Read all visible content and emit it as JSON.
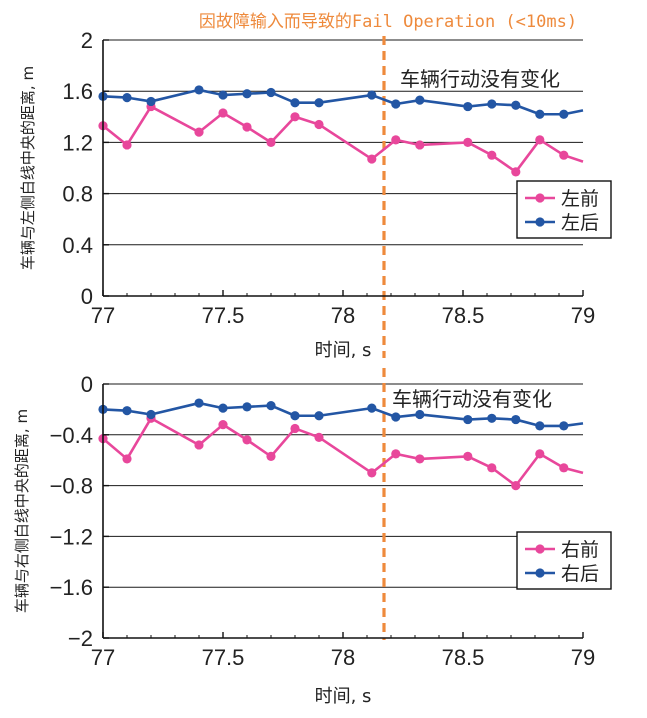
{
  "colors": {
    "front": "#e8479b",
    "rear": "#2356a4",
    "event": "#ee8a3c",
    "axis": "#111111"
  },
  "chart_data": [
    {
      "type": "line",
      "title": "因故障输入而导致的Fail Operation (<10ms)",
      "annotation": "车辆行动没有变化",
      "xlabel": "时间, s",
      "ylabel": "车辆与左侧白线中央的距离, m",
      "xlim": [
        77,
        79
      ],
      "ylim": [
        0,
        2
      ],
      "x_ticks": [
        "77",
        "77.5",
        "78",
        "78.5",
        "79"
      ],
      "y_ticks": [
        "0",
        "0.4",
        "0.8",
        "1.2",
        "1.6",
        "2"
      ],
      "grid": "horizontal",
      "legend_position": "right",
      "event_x": 78.17,
      "series": [
        {
          "name": "左前",
          "x": [
            77,
            77.1,
            77.2,
            77.4,
            77.5,
            77.6,
            77.7,
            77.8,
            77.9,
            78.12,
            78.22,
            78.32,
            78.52,
            78.62,
            78.72,
            78.82,
            78.92,
            79
          ],
          "values": [
            1.33,
            1.18,
            1.48,
            1.28,
            1.43,
            1.32,
            1.2,
            1.4,
            1.34,
            1.07,
            1.22,
            1.18,
            1.2,
            1.1,
            0.97,
            1.22,
            1.1,
            1.05
          ]
        },
        {
          "name": "左后",
          "x": [
            77,
            77.1,
            77.2,
            77.4,
            77.5,
            77.6,
            77.7,
            77.8,
            77.9,
            78.12,
            78.22,
            78.32,
            78.52,
            78.62,
            78.72,
            78.82,
            78.92,
            79
          ],
          "values": [
            1.56,
            1.55,
            1.52,
            1.61,
            1.57,
            1.58,
            1.59,
            1.51,
            1.51,
            1.57,
            1.5,
            1.53,
            1.48,
            1.5,
            1.49,
            1.42,
            1.42,
            1.45
          ]
        }
      ]
    },
    {
      "type": "line",
      "annotation": "车辆行动没有变化",
      "xlabel": "时间, s",
      "ylabel": "车辆与右侧白线中央的距离, m",
      "xlim": [
        77,
        79
      ],
      "ylim": [
        -2,
        0
      ],
      "x_ticks": [
        "77",
        "77.5",
        "78",
        "78.5",
        "79"
      ],
      "y_ticks": [
        "0",
        "-0.4",
        "-0.8",
        "-1.2",
        "-1.6",
        "-2"
      ],
      "grid": "horizontal",
      "legend_position": "right",
      "event_x": 78.17,
      "series": [
        {
          "name": "右前",
          "x": [
            77,
            77.1,
            77.2,
            77.4,
            77.5,
            77.6,
            77.7,
            77.8,
            77.9,
            78.12,
            78.22,
            78.32,
            78.52,
            78.62,
            78.72,
            78.82,
            78.92,
            79
          ],
          "values": [
            -0.43,
            -0.59,
            -0.27,
            -0.48,
            -0.32,
            -0.44,
            -0.57,
            -0.35,
            -0.42,
            -0.7,
            -0.55,
            -0.59,
            -0.57,
            -0.66,
            -0.8,
            -0.55,
            -0.66,
            -0.7
          ]
        },
        {
          "name": "右后",
          "x": [
            77,
            77.1,
            77.2,
            77.4,
            77.5,
            77.6,
            77.7,
            77.8,
            77.9,
            78.12,
            78.22,
            78.32,
            78.52,
            78.62,
            78.72,
            78.82,
            78.92,
            79
          ],
          "values": [
            -0.2,
            -0.21,
            -0.24,
            -0.15,
            -0.19,
            -0.18,
            -0.17,
            -0.25,
            -0.25,
            -0.19,
            -0.26,
            -0.24,
            -0.28,
            -0.27,
            -0.28,
            -0.33,
            -0.33,
            -0.31
          ]
        }
      ]
    }
  ]
}
